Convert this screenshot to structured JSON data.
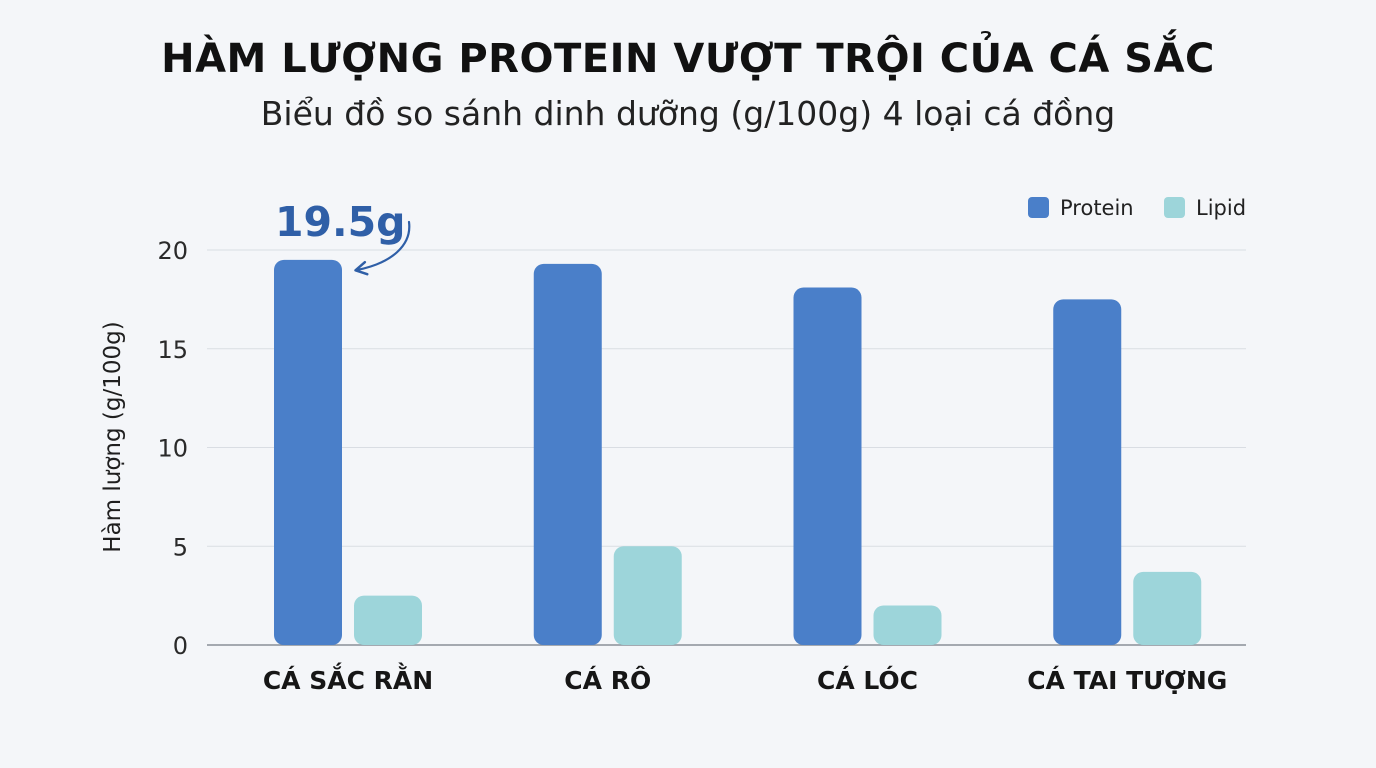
{
  "title": "HÀM LƯỢNG PROTEIN VƯỢT TRỘI CỦA CÁ SẮC",
  "subtitle": "Biểu đồ so sánh dinh dưỡng (g/100g) 4 loại cá đồng",
  "chart_data": {
    "type": "bar",
    "categories": [
      "CÁ SẮC RẰN",
      "CÁ RÔ",
      "CÁ LÓC",
      "CÁ TAI TƯỢNG"
    ],
    "series": [
      {
        "name": "Protein",
        "color": "#4a7fc9",
        "values": [
          19.5,
          19.3,
          18.1,
          17.5
        ]
      },
      {
        "name": "Lipid",
        "color": "#9dd5da",
        "values": [
          2.5,
          5.0,
          2.0,
          3.7
        ]
      }
    ],
    "ylabel": "Hàm lượng (g/100g)",
    "xlabel": "",
    "ylim": [
      0,
      20
    ],
    "yticks": [
      0,
      5,
      10,
      15,
      20
    ],
    "grid": true,
    "legend_position": "top-right",
    "annotation": {
      "text": "19.5g",
      "color": "#2f5fa7",
      "category_index": 0,
      "series_index": 0
    }
  }
}
